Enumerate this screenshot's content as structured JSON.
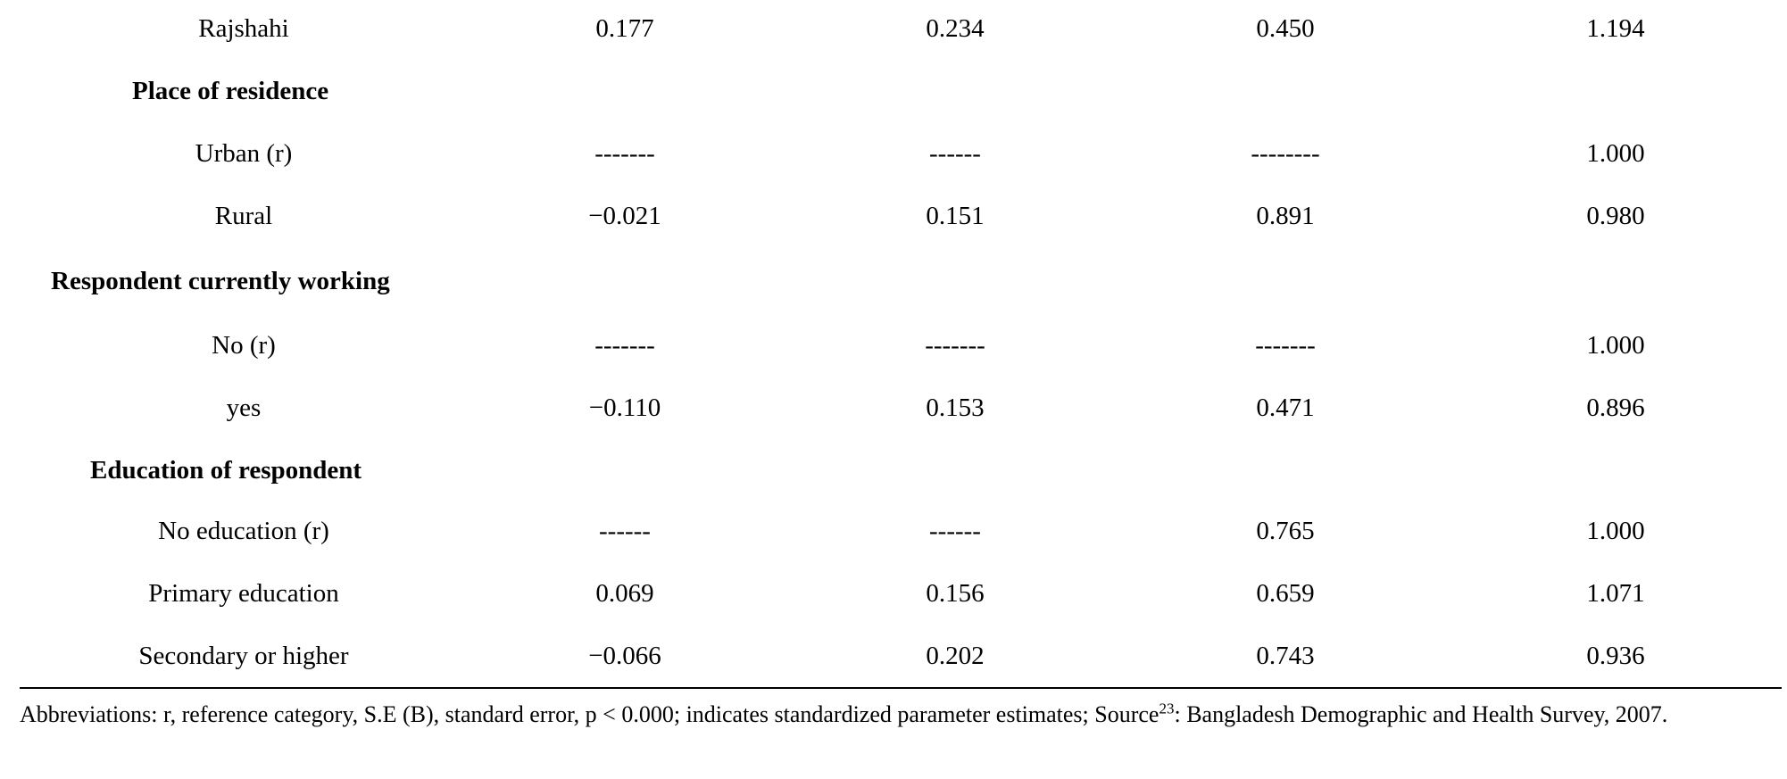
{
  "table": {
    "rows": [
      {
        "type": "data",
        "label": "Rajshahi",
        "values": [
          "0.177",
          "0.234",
          "0.450",
          "1.194"
        ]
      },
      {
        "type": "section",
        "label": "Place of residence"
      },
      {
        "type": "data",
        "label": "Urban (r)",
        "values": [
          "-------",
          "------",
          "--------",
          "1.000"
        ]
      },
      {
        "type": "data",
        "label": "Rural",
        "values": [
          "−0.021",
          "0.151",
          "0.891",
          "0.980"
        ]
      },
      {
        "type": "section",
        "label": "Respondent currently working"
      },
      {
        "type": "data",
        "label": "No (r)",
        "values": [
          "-------",
          "-------",
          "-------",
          "1.000"
        ]
      },
      {
        "type": "data",
        "label": "yes",
        "values": [
          "−0.110",
          "0.153",
          "0.471",
          "0.896"
        ]
      },
      {
        "type": "section",
        "label": "Education of respondent"
      },
      {
        "type": "data",
        "label": "No education (r)",
        "values": [
          "------",
          "------",
          "0.765",
          "1.000"
        ]
      },
      {
        "type": "data",
        "label": "Primary education",
        "values": [
          "0.069",
          "0.156",
          "0.659",
          "1.071"
        ]
      },
      {
        "type": "data",
        "label": "Secondary or higher",
        "values": [
          "−0.066",
          "0.202",
          "0.743",
          "0.936"
        ]
      }
    ]
  },
  "footnote": {
    "before_sup": "Abbreviations: r, reference category, S.E (B), standard error, p < 0.000; indicates standardized parameter estimates; Source",
    "sup": "23",
    "after_sup": ": Bangladesh Demographic and Health Survey, 2007."
  }
}
